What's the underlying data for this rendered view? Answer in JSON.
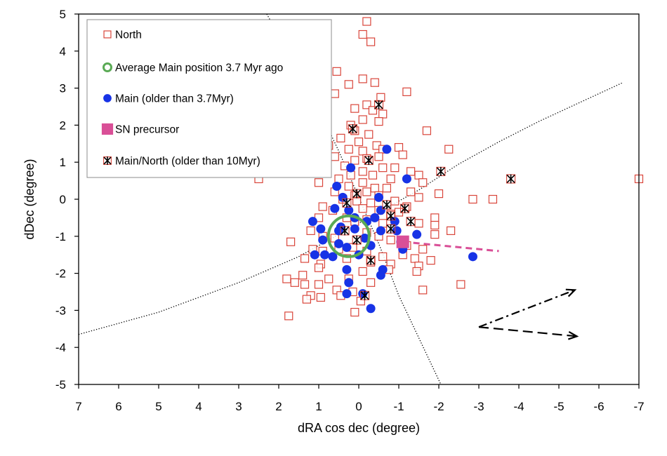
{
  "chart_data": {
    "type": "scatter",
    "xlabel": "dRA cos dec (degree)",
    "ylabel": "dDec (degree)",
    "xlim": [
      7,
      -7
    ],
    "ylim": [
      -5,
      5
    ],
    "x_ticks": [
      "7",
      "6",
      "5",
      "4",
      "3",
      "2",
      "1",
      "0",
      "-1",
      "-2",
      "-3",
      "-4",
      "-5",
      "-6",
      "-7"
    ],
    "y_ticks": [
      "5",
      "4",
      "3",
      "2",
      "1",
      "0",
      "-1",
      "-2",
      "-3",
      "-4",
      "-5"
    ],
    "grid": false,
    "legend": {
      "position": "top-left",
      "entries": [
        {
          "label": "North",
          "marker": "open-square",
          "color": "#d9453a"
        },
        {
          "label": "Average Main position 3.7 Myr ago",
          "marker": "open-circle",
          "color": "#5aaa55"
        },
        {
          "label": "Main (older than 3.7Myr)",
          "marker": "filled-circle",
          "color": "#1733e6"
        },
        {
          "label": "SN precursor",
          "marker": "filled-square",
          "color": "#d94f97"
        },
        {
          "label": "Main/North (older than 10Myr)",
          "marker": "asterisk",
          "color": "#000000"
        }
      ]
    },
    "series": [
      {
        "name": "North",
        "marker": "open-square",
        "color": "#d9453a",
        "points": [
          [
            -0.2,
            4.8
          ],
          [
            -0.1,
            4.45
          ],
          [
            -0.3,
            4.25
          ],
          [
            0.55,
            3.45
          ],
          [
            -0.1,
            3.25
          ],
          [
            -0.4,
            3.15
          ],
          [
            0.25,
            3.1
          ],
          [
            0.6,
            2.85
          ],
          [
            1.8,
            2.95
          ],
          [
            1.65,
            2.85
          ],
          [
            3.45,
            2.25
          ],
          [
            -0.55,
            2.75
          ],
          [
            -0.2,
            2.55
          ],
          [
            0.1,
            2.45
          ],
          [
            -0.35,
            2.4
          ],
          [
            -0.6,
            2.3
          ],
          [
            -0.1,
            2.15
          ],
          [
            0.2,
            2.0
          ],
          [
            -0.5,
            2.1
          ],
          [
            -1.2,
            2.9
          ],
          [
            -1.7,
            1.85
          ],
          [
            0.1,
            1.85
          ],
          [
            -0.25,
            1.75
          ],
          [
            0.45,
            1.65
          ],
          [
            0.0,
            1.55
          ],
          [
            -0.45,
            1.45
          ],
          [
            0.25,
            1.35
          ],
          [
            0.75,
            1.45
          ],
          [
            -0.1,
            1.3
          ],
          [
            -0.6,
            1.35
          ],
          [
            -1.0,
            1.4
          ],
          [
            -2.25,
            1.35
          ],
          [
            0.6,
            1.15
          ],
          [
            0.1,
            1.05
          ],
          [
            -0.2,
            1.1
          ],
          [
            -0.5,
            1.15
          ],
          [
            -1.1,
            1.2
          ],
          [
            0.35,
            0.9
          ],
          [
            0.85,
            1.15
          ],
          [
            1.45,
            1.0
          ],
          [
            -0.6,
            0.85
          ],
          [
            -0.9,
            0.85
          ],
          [
            -1.3,
            0.75
          ],
          [
            -1.5,
            0.65
          ],
          [
            2.5,
            0.55
          ],
          [
            0.5,
            0.55
          ],
          [
            0.2,
            0.65
          ],
          [
            -0.1,
            0.75
          ],
          [
            -0.35,
            0.65
          ],
          [
            -0.8,
            0.55
          ],
          [
            -1.6,
            0.45
          ],
          [
            1.0,
            0.45
          ],
          [
            0.25,
            0.35
          ],
          [
            -0.1,
            0.45
          ],
          [
            -0.4,
            0.3
          ],
          [
            -0.7,
            0.3
          ],
          [
            -1.3,
            0.2
          ],
          [
            -2.0,
            0.15
          ],
          [
            0.6,
            0.2
          ],
          [
            0.1,
            0.1
          ],
          [
            -0.2,
            0.2
          ],
          [
            -0.5,
            0.1
          ],
          [
            -1.5,
            0.05
          ],
          [
            0.4,
            0.0
          ],
          [
            0.05,
            -0.05
          ],
          [
            -0.3,
            -0.1
          ],
          [
            -0.9,
            -0.05
          ],
          [
            -1.2,
            -0.2
          ],
          [
            0.9,
            -0.2
          ],
          [
            0.65,
            -0.3
          ],
          [
            -0.1,
            -0.25
          ],
          [
            -0.5,
            -0.3
          ],
          [
            -0.8,
            -0.4
          ],
          [
            -1.0,
            -0.35
          ],
          [
            -1.9,
            -0.5
          ],
          [
            -2.85,
            0.0
          ],
          [
            -3.35,
            0.0
          ],
          [
            -7.0,
            0.55
          ],
          [
            1.0,
            -0.5
          ],
          [
            0.3,
            -0.5
          ],
          [
            0.1,
            -0.6
          ],
          [
            -0.2,
            -0.55
          ],
          [
            -0.6,
            -0.65
          ],
          [
            -1.5,
            -0.65
          ],
          [
            -1.9,
            -0.7
          ],
          [
            -1.9,
            -0.95
          ],
          [
            -2.3,
            -0.85
          ],
          [
            1.7,
            -1.15
          ],
          [
            1.2,
            -0.85
          ],
          [
            0.9,
            -1.0
          ],
          [
            0.6,
            -1.05
          ],
          [
            -0.2,
            -0.9
          ],
          [
            -0.5,
            -1.0
          ],
          [
            -0.8,
            -1.1
          ],
          [
            -1.2,
            -1.25
          ],
          [
            -1.6,
            -1.35
          ],
          [
            1.15,
            -1.35
          ],
          [
            0.9,
            -1.4
          ],
          [
            0.5,
            -1.35
          ],
          [
            0.15,
            -1.3
          ],
          [
            -0.2,
            -1.4
          ],
          [
            -0.6,
            -1.55
          ],
          [
            -1.1,
            -1.5
          ],
          [
            -1.4,
            -1.6
          ],
          [
            -1.8,
            -1.65
          ],
          [
            1.35,
            -1.6
          ],
          [
            0.95,
            -1.75
          ],
          [
            -0.3,
            -1.7
          ],
          [
            -0.8,
            -1.75
          ],
          [
            -1.5,
            -1.8
          ],
          [
            1.0,
            -1.85
          ],
          [
            -0.1,
            -1.95
          ],
          [
            -0.75,
            -1.9
          ],
          [
            -1.45,
            -1.95
          ],
          [
            1.4,
            -2.05
          ],
          [
            0.75,
            -2.15
          ],
          [
            0.25,
            -2.15
          ],
          [
            -0.3,
            -2.25
          ],
          [
            1.8,
            -2.15
          ],
          [
            1.6,
            -2.25
          ],
          [
            1.35,
            -2.3
          ],
          [
            1.0,
            -2.3
          ],
          [
            0.55,
            -2.45
          ],
          [
            0.15,
            -2.5
          ],
          [
            -1.6,
            -2.45
          ],
          [
            -2.55,
            -2.3
          ],
          [
            1.2,
            -2.6
          ],
          [
            0.95,
            -2.65
          ],
          [
            0.45,
            -2.6
          ],
          [
            -0.05,
            -2.75
          ],
          [
            1.75,
            -3.15
          ],
          [
            0.1,
            -3.05
          ],
          [
            1.3,
            -2.7
          ],
          [
            0.3,
            -1.6
          ]
        ]
      },
      {
        "name": "Average Main position 3.7 Myr ago",
        "marker": "open-circle",
        "color": "#5aaa55",
        "points": [
          [
            0.25,
            -1.0
          ]
        ]
      },
      {
        "name": "Main (older than 3.7Myr)",
        "marker": "filled-circle",
        "color": "#1733e6",
        "points": [
          [
            -0.7,
            1.35
          ],
          [
            0.2,
            0.85
          ],
          [
            -1.2,
            0.55
          ],
          [
            0.55,
            0.35
          ],
          [
            0.4,
            0.05
          ],
          [
            0.6,
            -0.25
          ],
          [
            0.25,
            -0.3
          ],
          [
            -0.5,
            0.05
          ],
          [
            -0.55,
            -0.3
          ],
          [
            -0.4,
            -0.5
          ],
          [
            0.1,
            -0.5
          ],
          [
            -0.2,
            -0.6
          ],
          [
            1.15,
            -0.6
          ],
          [
            0.95,
            -0.8
          ],
          [
            0.45,
            -0.75
          ],
          [
            0.1,
            -0.8
          ],
          [
            -0.55,
            -0.85
          ],
          [
            -0.9,
            -0.6
          ],
          [
            -0.95,
            -0.85
          ],
          [
            -1.45,
            -0.95
          ],
          [
            0.9,
            -1.1
          ],
          [
            0.5,
            -1.2
          ],
          [
            -0.15,
            -1.05
          ],
          [
            -1.05,
            -1.15
          ],
          [
            -1.1,
            -1.35
          ],
          [
            0.3,
            -1.3
          ],
          [
            -0.3,
            -1.25
          ],
          [
            1.1,
            -1.5
          ],
          [
            0.85,
            -1.5
          ],
          [
            0.65,
            -1.55
          ],
          [
            0.0,
            -1.5
          ],
          [
            -0.6,
            -1.9
          ],
          [
            -0.55,
            -2.05
          ],
          [
            0.3,
            -1.9
          ],
          [
            0.25,
            -2.25
          ],
          [
            0.3,
            -2.55
          ],
          [
            -0.1,
            -2.55
          ],
          [
            -0.3,
            -2.95
          ],
          [
            -2.85,
            -1.55
          ],
          [
            0.5,
            -0.85
          ]
        ]
      },
      {
        "name": "SN precursor",
        "marker": "filled-square",
        "color": "#d94f97",
        "points": [
          [
            -1.1,
            -1.15
          ]
        ]
      },
      {
        "name": "Main/North (older than 10Myr)",
        "marker": "asterisk",
        "color": "#000000",
        "points": [
          [
            -0.5,
            2.55
          ],
          [
            0.15,
            1.9
          ],
          [
            -0.25,
            1.05
          ],
          [
            -2.05,
            0.75
          ],
          [
            -3.8,
            0.55
          ],
          [
            0.05,
            0.15
          ],
          [
            0.3,
            -0.1
          ],
          [
            -0.7,
            -0.15
          ],
          [
            -1.15,
            -0.25
          ],
          [
            -0.8,
            -0.45
          ],
          [
            -1.3,
            -0.6
          ],
          [
            -0.8,
            -0.8
          ],
          [
            0.35,
            -0.85
          ],
          [
            0.05,
            -1.1
          ],
          [
            -0.3,
            -1.65
          ],
          [
            -0.15,
            -2.6
          ]
        ]
      }
    ],
    "lines": [
      {
        "style": "dotted",
        "color": "#000000",
        "points": [
          [
            7.0,
            -3.65
          ],
          [
            5.0,
            -3.05
          ],
          [
            3.0,
            -2.25
          ],
          [
            1.5,
            -1.55
          ],
          [
            0.5,
            -0.95
          ],
          [
            -0.5,
            -0.35
          ],
          [
            -1.5,
            0.25
          ],
          [
            -2.5,
            0.95
          ],
          [
            -3.5,
            1.55
          ],
          [
            -4.5,
            2.1
          ],
          [
            -5.5,
            2.6
          ],
          [
            -6.6,
            3.15
          ]
        ]
      },
      {
        "style": "dotted",
        "color": "#000000",
        "points": [
          [
            2.3,
            5.0
          ],
          [
            1.2,
            2.9
          ],
          [
            0.5,
            1.3
          ],
          [
            0.0,
            0.05
          ],
          [
            -0.5,
            -1.2
          ],
          [
            -1.0,
            -2.6
          ],
          [
            -2.05,
            -5.0
          ]
        ]
      },
      {
        "style": "dashed",
        "color": "#d94f97",
        "points": [
          [
            -1.1,
            -1.15
          ],
          [
            -3.5,
            -1.4
          ]
        ]
      }
    ],
    "arrows": [
      {
        "style": "dash-dot",
        "color": "#000000",
        "from": [
          -3.0,
          -3.45
        ],
        "to": [
          -5.4,
          -2.45
        ]
      },
      {
        "style": "dashed",
        "color": "#000000",
        "from": [
          -3.0,
          -3.45
        ],
        "to": [
          -5.45,
          -3.7
        ]
      }
    ]
  }
}
